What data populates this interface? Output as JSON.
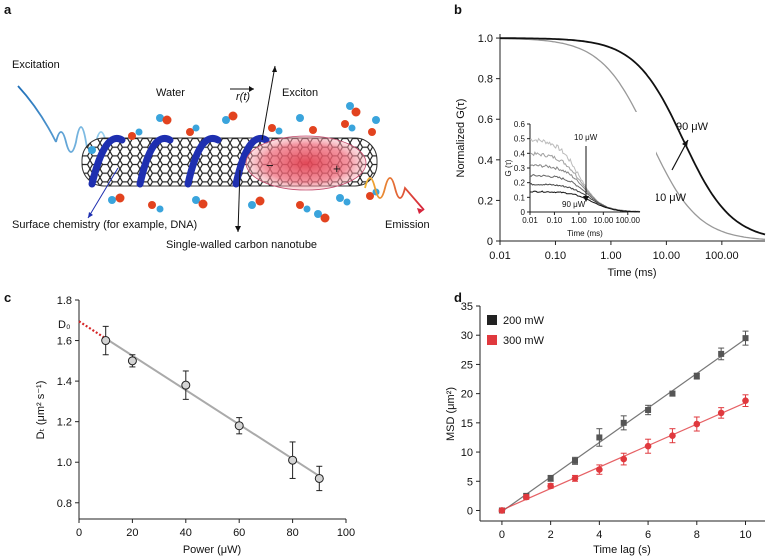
{
  "panel_a": {
    "label": "a",
    "labels": {
      "excitation": "Excitation",
      "water": "Water",
      "r_t": "r(t)",
      "exciton": "Exciton",
      "surface": "Surface chemistry (for example, DNA)",
      "swcnt": "Single-walled carbon nanotube",
      "emission": "Emission",
      "minus": "−",
      "plus": "+"
    }
  },
  "chart_data": [
    {
      "panel": "b",
      "type": "line",
      "xlabel": "Time (ms)",
      "ylabel": "Normalized G(τ)",
      "xscale": "log",
      "xlim": [
        0.01,
        600
      ],
      "ylim": [
        0,
        1.02
      ],
      "xticks": [
        "0.01",
        "0.10",
        "1.00",
        "10.00",
        "100.00"
      ],
      "yticks": [
        "0",
        "0.2",
        "0.4",
        "0.6",
        "0.8",
        "1.0"
      ],
      "series": [
        {
          "name": "10 μW",
          "color": "#999999",
          "tau_half_ms": 5,
          "x": [
            0.01,
            0.1,
            1,
            5,
            20,
            100,
            500
          ],
          "y": [
            1.0,
            0.98,
            0.83,
            0.5,
            0.2,
            0.05,
            0.01
          ]
        },
        {
          "name": "90 μW",
          "color": "#111111",
          "tau_half_ms": 20,
          "x": [
            0.01,
            0.1,
            1,
            5,
            20,
            100,
            500
          ],
          "y": [
            1.0,
            0.995,
            0.95,
            0.8,
            0.5,
            0.17,
            0.04
          ]
        }
      ],
      "annotations": [
        "90 μW",
        "10 μW"
      ],
      "inset": {
        "ylabel": "G (τ)",
        "xlabel": "Time (ms)",
        "xticks": [
          "0.01",
          "0.10",
          "1.00",
          "10.00",
          "100.00"
        ],
        "yticks": [
          "0",
          "0.1",
          "0.2",
          "0.3",
          "0.4",
          "0.5",
          "0.6"
        ],
        "labels": [
          "10 μW",
          "90 μW"
        ],
        "series": [
          {
            "amplitude": 0.5,
            "tau_half_ms": 1.0,
            "color": "#bbbbbb"
          },
          {
            "amplitude": 0.4,
            "tau_half_ms": 1.3,
            "color": "#a0a0a0"
          },
          {
            "amplitude": 0.32,
            "tau_half_ms": 1.7,
            "color": "#858585"
          },
          {
            "amplitude": 0.25,
            "tau_half_ms": 2.2,
            "color": "#666666"
          },
          {
            "amplitude": 0.19,
            "tau_half_ms": 2.8,
            "color": "#444444"
          },
          {
            "amplitude": 0.14,
            "tau_half_ms": 3.5,
            "color": "#111111"
          }
        ]
      }
    },
    {
      "panel": "c",
      "type": "scatter",
      "xlabel": "Power (μW)",
      "ylabel": "Dₜ (μm² s⁻¹)",
      "xlim": [
        0,
        100
      ],
      "ylim": [
        0.72,
        1.8
      ],
      "xticks": [
        "0",
        "20",
        "40",
        "60",
        "80",
        "100"
      ],
      "yticks": [
        "0.8",
        "1.0",
        "1.2",
        "1.4",
        "1.6",
        "1.8"
      ],
      "points": [
        {
          "x": 10,
          "y": 1.6,
          "err": 0.07
        },
        {
          "x": 20,
          "y": 1.5,
          "err": 0.03
        },
        {
          "x": 40,
          "y": 1.38,
          "err": 0.07
        },
        {
          "x": 60,
          "y": 1.18,
          "err": 0.04
        },
        {
          "x": 80,
          "y": 1.01,
          "err": 0.09
        },
        {
          "x": 90,
          "y": 0.92,
          "err": 0.06
        }
      ],
      "fit": {
        "intercept": 1.695,
        "slope": -0.00848,
        "color": "#aaaaaa"
      },
      "extrapolation_color": "#d62728",
      "annotation": "D₀"
    },
    {
      "panel": "d",
      "type": "scatter",
      "xlabel": "Time lag (s)",
      "ylabel": "MSD (μm²)",
      "xlim": [
        -0.9,
        10.8
      ],
      "ylim": [
        -1.8,
        35
      ],
      "xticks": [
        "0",
        "2",
        "4",
        "6",
        "8",
        "10"
      ],
      "yticks": [
        "0",
        "5",
        "10",
        "15",
        "20",
        "25",
        "30",
        "35"
      ],
      "legend_position": "top-left",
      "series": [
        {
          "name": "200 mW",
          "color": "#555555",
          "marker": "square",
          "x": [
            0,
            1,
            2,
            3,
            4,
            5,
            6,
            7,
            8,
            9,
            10
          ],
          "y": [
            0,
            2.5,
            5.5,
            8.5,
            12.5,
            15,
            17.2,
            20,
            23,
            26.8,
            29.5
          ],
          "err": [
            0.2,
            0.4,
            0.5,
            0.6,
            1.5,
            1.2,
            0.8,
            0.4,
            0.5,
            1.0,
            1.2
          ]
        },
        {
          "name": "300 mW",
          "color": "#e0393e",
          "marker": "circle",
          "x": [
            0,
            1,
            2,
            3,
            4,
            5,
            6,
            7,
            8,
            9,
            10
          ],
          "y": [
            0,
            2.3,
            4.2,
            5.5,
            7,
            8.8,
            11,
            12.8,
            14.8,
            16.7,
            18.8
          ],
          "err": [
            0.2,
            0.4,
            0.4,
            0.5,
            0.8,
            1.0,
            1.2,
            1.2,
            1.2,
            0.9,
            1.0
          ]
        }
      ]
    }
  ]
}
